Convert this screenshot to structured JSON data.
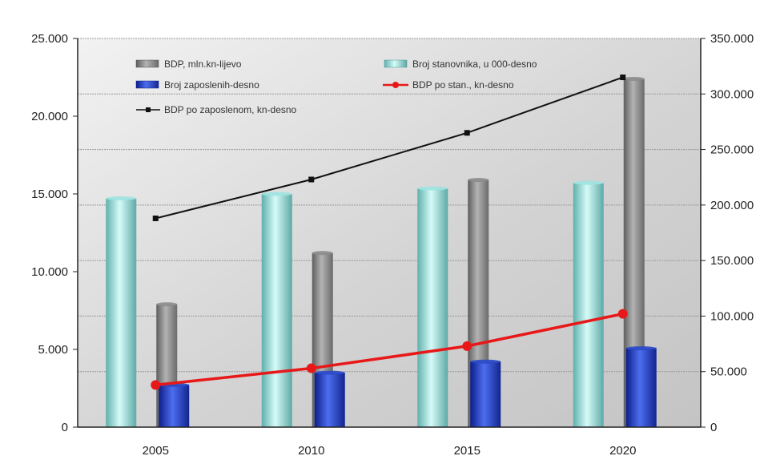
{
  "chart_data": {
    "type": "bar",
    "categories": [
      "2005",
      "2010",
      "2015",
      "2020"
    ],
    "left_axis": {
      "min": 0,
      "max": 25000,
      "step": 5000,
      "tick_labels": [
        "0",
        "5.000",
        "10.000",
        "15.000",
        "20.000",
        "25.000"
      ]
    },
    "right_axis": {
      "min": 0,
      "max": 350000,
      "step": 50000,
      "tick_labels": [
        "0",
        "50.000",
        "100.000",
        "150.000",
        "200.000",
        "250.000",
        "300.000",
        "350.000"
      ]
    },
    "grid": true,
    "legend_position": "top, inside plot",
    "series": [
      {
        "name": "BDP, mln.kn-lijevo",
        "kind": "bar",
        "axis": "left",
        "color": "#8c8c8c",
        "values": [
          7900,
          11200,
          15900,
          22400
        ]
      },
      {
        "name": "Broj stanovnika, u 000-desno",
        "kind": "bar",
        "axis": "right",
        "color": "#9fe3e0",
        "values": [
          206000,
          210000,
          215000,
          220000
        ]
      },
      {
        "name": "Broj zaposlenih-desno",
        "kind": "bar",
        "axis": "right",
        "color": "#2b49c8",
        "values": [
          38000,
          49000,
          59000,
          71000
        ]
      },
      {
        "name": "BDP po stan., kn-desno",
        "kind": "line",
        "axis": "right",
        "color": "#e81818",
        "values": [
          38000,
          53000,
          73000,
          102000
        ]
      },
      {
        "name": "BDP po zaposlenom, kn-desno",
        "kind": "line",
        "axis": "right",
        "color": "#111111",
        "values": [
          188000,
          223000,
          265000,
          315000
        ]
      }
    ]
  }
}
